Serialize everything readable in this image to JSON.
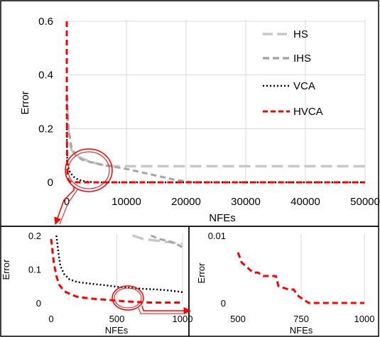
{
  "chart_data": [
    {
      "type": "line",
      "xlabel": "NFEs",
      "ylabel": "Error",
      "xlim": [
        0,
        50000
      ],
      "ylim": [
        0,
        0.6
      ],
      "x_ticks": [
        "0",
        "10000",
        "20000",
        "30000",
        "40000",
        "50000"
      ],
      "y_ticks": [
        "0",
        "0.2",
        "0.4",
        "0.6"
      ],
      "grid": true,
      "legend_position": "top-right",
      "legend": [
        "HS",
        "IHS",
        "VCA",
        "HVCA"
      ],
      "series": [
        {
          "name": "HS",
          "color": "#c8c8c8",
          "dash": "long-dash",
          "x": [
            0,
            150,
            400,
            800,
            1500,
            2500,
            3500,
            5000,
            6000,
            7000,
            8000,
            50000
          ],
          "y": [
            0.33,
            0.22,
            0.16,
            0.12,
            0.1,
            0.09,
            0.08,
            0.07,
            0.065,
            0.062,
            0.06,
            0.06
          ]
        },
        {
          "name": "IHS",
          "color": "#a6a6a6",
          "dash": "dash",
          "x": [
            0,
            300,
            800,
            1500,
            2500,
            4000,
            6000,
            8000,
            10000,
            12000,
            14000,
            16000,
            18000,
            20000,
            21000,
            50000
          ],
          "y": [
            0.32,
            0.2,
            0.13,
            0.1,
            0.085,
            0.075,
            0.065,
            0.058,
            0.05,
            0.04,
            0.03,
            0.02,
            0.01,
            0.004,
            0,
            0
          ]
        },
        {
          "name": "VCA",
          "color": "#000000",
          "dash": "dot",
          "x": [
            0,
            60,
            150,
            300,
            500,
            800,
            1200,
            1800,
            2500,
            3500,
            5000,
            50000
          ],
          "y": [
            0.2,
            0.1,
            0.07,
            0.05,
            0.04,
            0.03,
            0.02,
            0.012,
            0.006,
            0.002,
            0,
            0
          ]
        },
        {
          "name": "HVCA",
          "color": "#ff0000",
          "dash": "dash",
          "x": [
            0,
            10,
            30,
            80,
            150,
            300,
            600,
            1000,
            2000,
            50000
          ],
          "y": [
            0.6,
            0.35,
            0.15,
            0.05,
            0.02,
            0.008,
            0.002,
            0.001,
            0,
            0
          ]
        }
      ]
    },
    {
      "type": "line",
      "xlabel": "NFEs",
      "ylabel": "Error",
      "xlim": [
        0,
        1000
      ],
      "ylim": [
        0,
        0.2
      ],
      "x_ticks": [
        "0",
        "500",
        "1000"
      ],
      "y_ticks": [
        "0",
        "0.1",
        "0.2"
      ],
      "grid": true,
      "series": [
        {
          "name": "HS",
          "color": "#c8c8c8",
          "dash": "long-dash",
          "x": [
            620,
            700,
            800,
            900,
            1000
          ],
          "y": [
            0.2,
            0.19,
            0.185,
            0.18,
            0.175
          ]
        },
        {
          "name": "IHS",
          "color": "#a6a6a6",
          "dash": "dash",
          "x": [
            760,
            820,
            880,
            940,
            1000
          ],
          "y": [
            0.2,
            0.19,
            0.185,
            0.178,
            0.165
          ]
        },
        {
          "name": "VCA",
          "color": "#000000",
          "dash": "dot",
          "x": [
            40,
            55,
            70,
            100,
            140,
            200,
            300,
            400,
            500,
            600,
            700,
            800,
            900,
            1000
          ],
          "y": [
            0.2,
            0.15,
            0.11,
            0.085,
            0.07,
            0.062,
            0.057,
            0.053,
            0.048,
            0.045,
            0.042,
            0.04,
            0.037,
            0.032
          ]
        },
        {
          "name": "HVCA",
          "color": "#ff0000",
          "dash": "dash",
          "x": [
            0,
            20,
            40,
            60,
            100,
            150,
            200,
            300,
            400,
            500,
            550,
            600,
            650,
            700,
            750,
            1000
          ],
          "y": [
            0.19,
            0.12,
            0.08,
            0.055,
            0.035,
            0.025,
            0.018,
            0.013,
            0.01,
            0.007,
            0.005,
            0.004,
            0.003,
            0.002,
            0.001,
            0.001
          ]
        }
      ]
    },
    {
      "type": "line",
      "xlabel": "NFEs",
      "ylabel": "Error",
      "xlim": [
        500,
        1000
      ],
      "ylim": [
        0,
        0.01
      ],
      "x_ticks": [
        "500",
        "750",
        "1000"
      ],
      "y_ticks": [
        "0",
        "0.01"
      ],
      "grid": true,
      "series": [
        {
          "name": "HVCA",
          "color": "#ff0000",
          "dash": "dash",
          "x": [
            500,
            515,
            530,
            545,
            560,
            580,
            600,
            650,
            660,
            700,
            720,
            740,
            760,
            780,
            1000
          ],
          "y": [
            0.0075,
            0.006,
            0.0055,
            0.005,
            0.0045,
            0.0045,
            0.004,
            0.004,
            0.0025,
            0.002,
            0.002,
            0.001,
            0.0005,
            0,
            0
          ]
        }
      ]
    }
  ]
}
